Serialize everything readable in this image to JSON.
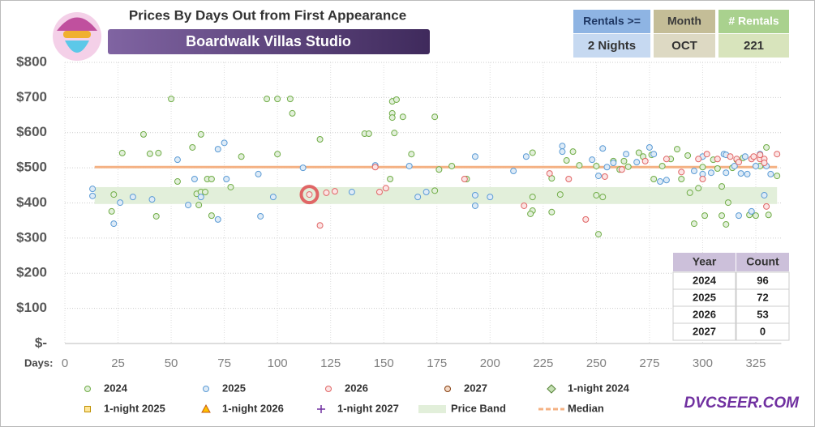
{
  "chart_data": {
    "type": "scatter",
    "header": {
      "title": "Prices By Days Out from First Appearance",
      "subtitle": "Boardwalk Villas Studio"
    },
    "info": [
      {
        "label": "Rentals >=",
        "value": "2 Nights"
      },
      {
        "label": "Month",
        "value": "OCT"
      },
      {
        "label": "# Rentals",
        "value": 221
      }
    ],
    "count_table": {
      "columns": [
        "Year",
        "Count"
      ],
      "rows": [
        [
          "2024",
          96
        ],
        [
          "2025",
          72
        ],
        [
          "2026",
          53
        ],
        [
          "2027",
          0
        ]
      ]
    },
    "x_label": "Days:",
    "xlim": [
      0,
      337
    ],
    "xticks": [
      0,
      25,
      50,
      75,
      100,
      125,
      150,
      175,
      200,
      225,
      250,
      275,
      300,
      325
    ],
    "ylim": [
      0,
      800
    ],
    "yticks": [
      {
        "value": 0,
        "label": "$-"
      },
      {
        "value": 100,
        "label": "$100"
      },
      {
        "value": 200,
        "label": "$200"
      },
      {
        "value": 300,
        "label": "$300"
      },
      {
        "value": 400,
        "label": "$400"
      },
      {
        "value": 500,
        "label": "$500"
      },
      {
        "value": 600,
        "label": "$600"
      },
      {
        "value": 700,
        "label": "$700"
      },
      {
        "value": 800,
        "label": "$800"
      }
    ],
    "grid": true,
    "series": [
      {
        "name": "2024",
        "color": "#70ad47",
        "fill": "#e2efda",
        "marker": "circle",
        "x": [
          22,
          23,
          27,
          37,
          40,
          44,
          43,
          50,
          53,
          60,
          62,
          64,
          63,
          64,
          66,
          67,
          69,
          69,
          78,
          83,
          95,
          100,
          100,
          106,
          107,
          120,
          141,
          143,
          154,
          154,
          154,
          155,
          156,
          159,
          153,
          163,
          174,
          176,
          174,
          182,
          189,
          220,
          220,
          219,
          220,
          229,
          229,
          233,
          236,
          239,
          242,
          250,
          250,
          251,
          253,
          258,
          261,
          263,
          265,
          270,
          272,
          276,
          277,
          281,
          285,
          288,
          290,
          293,
          294,
          296,
          298,
          300,
          301,
          305,
          307,
          309,
          309,
          311,
          312,
          314,
          316,
          319,
          322,
          325,
          330,
          331,
          335,
          327
        ],
        "y": [
          376,
          424,
          542,
          595,
          540,
          542,
          362,
          696,
          461,
          558,
          426,
          595,
          394,
          431,
          431,
          468,
          468,
          364,
          445,
          532,
          696,
          539,
          696,
          696,
          655,
          581,
          597,
          597,
          689,
          655,
          643,
          599,
          694,
          645,
          468,
          539,
          645,
          495,
          435,
          505,
          468,
          417,
          378,
          369,
          543,
          374,
          470,
          424,
          521,
          546,
          507,
          505,
          422,
          311,
          417,
          519,
          495,
          519,
          503,
          543,
          532,
          537,
          468,
          505,
          525,
          553,
          468,
          535,
          429,
          341,
          442,
          502,
          364,
          523,
          498,
          447,
          364,
          339,
          401,
          500,
          523,
          528,
          366,
          364,
          558,
          366,
          477,
          505
        ]
      },
      {
        "name": "2025",
        "color": "#5b9bd5",
        "fill": "#deebf7",
        "marker": "circle",
        "x": [
          13,
          13,
          23,
          26,
          32,
          41,
          53,
          58,
          61,
          64,
          72,
          72,
          75,
          76,
          91,
          92,
          98,
          112,
          135,
          146,
          162,
          166,
          170,
          193,
          193,
          193,
          200,
          211,
          217,
          234,
          234,
          248,
          251,
          253,
          255,
          258,
          264,
          269,
          275,
          277,
          280,
          283,
          296,
          300,
          300,
          304,
          310,
          311,
          311,
          315,
          317,
          318,
          320,
          321,
          323,
          325,
          327,
          329,
          330,
          332
        ],
        "y": [
          440,
          420,
          341,
          401,
          417,
          410,
          523,
          394,
          468,
          417,
          553,
          353,
          571,
          468,
          482,
          362,
          417,
          500,
          431,
          507,
          505,
          417,
          431,
          392,
          532,
          422,
          417,
          491,
          532,
          562,
          546,
          523,
          477,
          555,
          502,
          514,
          539,
          516,
          558,
          539,
          461,
          465,
          491,
          482,
          532,
          486,
          539,
          486,
          537,
          505,
          364,
          484,
          532,
          482,
          376,
          505,
          539,
          422,
          505,
          482
        ]
      },
      {
        "name": "2026",
        "color": "#e06666",
        "fill": "#fce4e4",
        "marker": "circle",
        "x": [
          115,
          120,
          123,
          127,
          146,
          148,
          151,
          188,
          216,
          228,
          237,
          245,
          254,
          262,
          273,
          283,
          290,
          298,
          300,
          302,
          307,
          313,
          316,
          317,
          323,
          324,
          327,
          327,
          329,
          330,
          335,
          329
        ],
        "y": [
          424,
          336,
          429,
          433,
          502,
          431,
          442,
          468,
          392,
          484,
          468,
          353,
          475,
          495,
          519,
          525,
          488,
          525,
          468,
          539,
          525,
          532,
          525,
          516,
          525,
          532,
          525,
          537,
          525,
          390,
          539,
          514
        ]
      },
      {
        "name": "2027",
        "color": "#843c0c",
        "fill": "#f4d9c6",
        "marker": "circle",
        "x": [],
        "y": []
      },
      {
        "name": "1-night 2024",
        "color": "#548235",
        "fill": "#c5e0b4",
        "marker": "diamond",
        "x": [],
        "y": []
      },
      {
        "name": "1-night 2025",
        "color": "#bf9000",
        "fill": "#ffe699",
        "marker": "square",
        "x": [],
        "y": []
      },
      {
        "name": "1-night 2026",
        "color": "#c55a11",
        "fill": "#ffc000",
        "marker": "triangle",
        "x": [],
        "y": []
      },
      {
        "name": "1-night 2027",
        "color": "#7030a0",
        "fill": "#7030a0",
        "marker": "plus",
        "x": [],
        "y": []
      }
    ],
    "band": {
      "name": "Price Band",
      "color": "#e2efda",
      "x": [
        14,
        335
      ],
      "y": [
        397,
        445
      ]
    },
    "median": {
      "name": "Median",
      "color": "#f4b183",
      "x": [
        14,
        335
      ],
      "value": 502
    },
    "highlight": {
      "x": 115,
      "y": 424,
      "color": "#e06666"
    },
    "watermark": "DVCSEER.COM"
  }
}
